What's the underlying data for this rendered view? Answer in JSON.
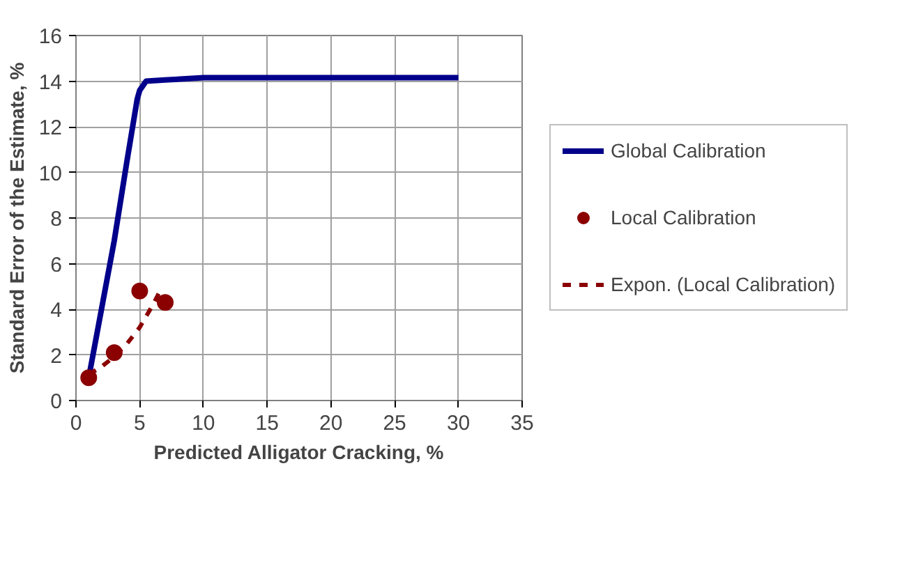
{
  "chart_data": {
    "type": "line",
    "xlabel": "Predicted Alligator Cracking, %",
    "ylabel": "Standard Error of the Estimate, %",
    "xlim": [
      0,
      35
    ],
    "xticks": [
      0,
      5,
      10,
      15,
      20,
      25,
      30,
      35
    ],
    "ylim": [
      0,
      16
    ],
    "yticks": [
      0,
      2,
      4,
      6,
      8,
      10,
      12,
      14,
      16
    ],
    "grid": true,
    "legend": "right",
    "series": [
      {
        "name": "Global Calibration",
        "type": "line",
        "color": "#00008b",
        "line_style": "solid",
        "x": [
          1,
          3,
          4,
          4.8,
          5,
          5.5,
          7,
          10,
          15,
          20,
          30
        ],
        "values": [
          1,
          7,
          10.5,
          13.2,
          13.6,
          14.0,
          14.05,
          14.15,
          14.15,
          14.15,
          14.15
        ]
      },
      {
        "name": "Local Calibration",
        "type": "scatter",
        "marker": "circle",
        "color": "#8b0000",
        "x": [
          1,
          3,
          5,
          7
        ],
        "values": [
          1,
          2.1,
          4.8,
          4.3
        ]
      },
      {
        "name": "Expon. (Local Calibration)",
        "type": "line",
        "color": "#8b0000",
        "line_style": "dashed",
        "x": [
          1,
          2,
          3,
          4,
          5,
          6,
          6.5
        ],
        "values": [
          1.14,
          1.48,
          1.92,
          2.49,
          3.21,
          4.16,
          4.7
        ]
      }
    ]
  }
}
